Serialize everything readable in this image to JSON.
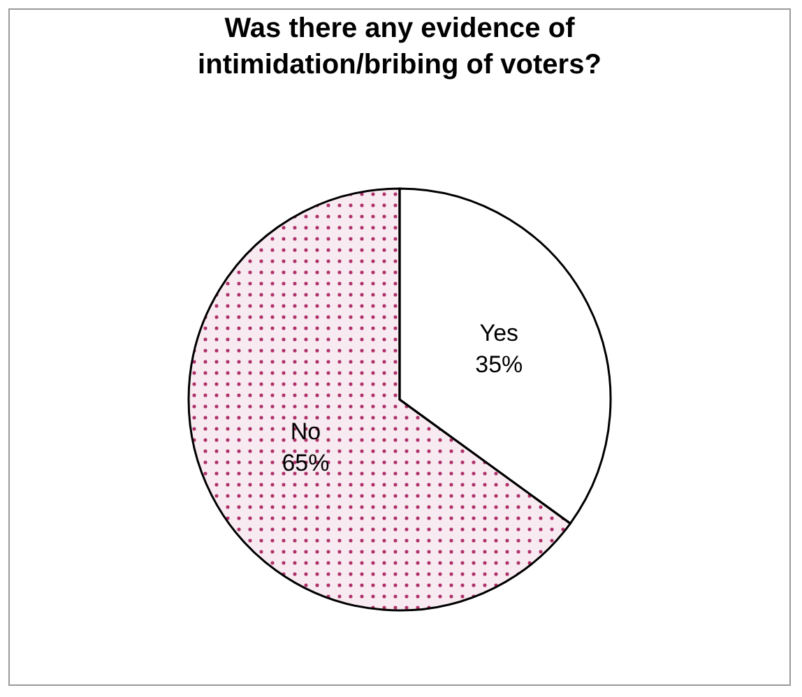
{
  "chart_data": {
    "type": "pie",
    "title": "Was there any evidence of\nintimidation/bribing of voters?",
    "categories": [
      "Yes",
      "No"
    ],
    "values": [
      35,
      65
    ],
    "colors": [
      "#ffffff",
      "#b0306a"
    ],
    "value_labels": [
      "35%",
      "65%"
    ],
    "legend": false
  }
}
